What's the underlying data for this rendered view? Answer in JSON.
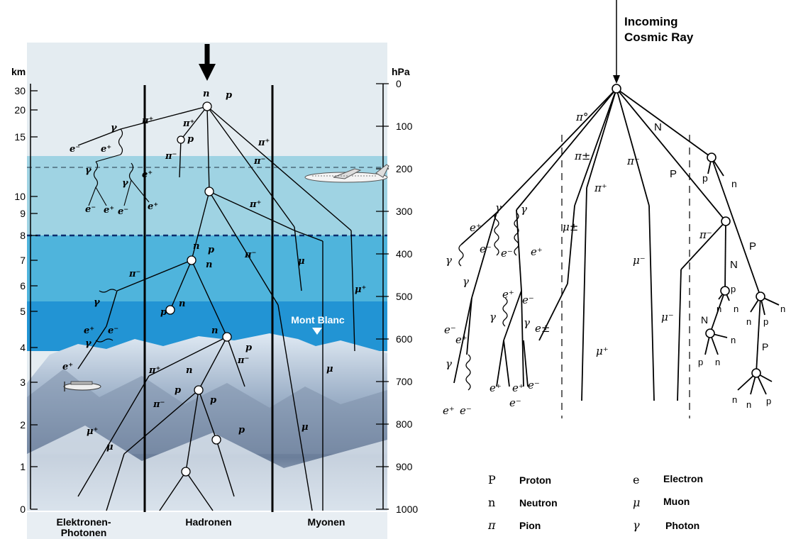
{
  "left_panel": {
    "axis_left_unit": "km",
    "axis_right_unit": "hPa",
    "km_ticks": [
      "30",
      "20",
      "15",
      "10",
      "9",
      "8",
      "7",
      "6",
      "5",
      "4",
      "3",
      "2",
      "1",
      "0"
    ],
    "hpa_ticks": [
      "0",
      "100",
      "200",
      "300",
      "400",
      "500",
      "600",
      "700",
      "800",
      "900",
      "1000"
    ],
    "columns": [
      "Elektronen-",
      "Photonen",
      "Hadronen",
      "Myonen"
    ],
    "mountain_label": "Mont Blanc",
    "particles": {
      "pi0": "π°",
      "pi_plus": "π⁺",
      "pi_minus": "π⁻",
      "mu": "μ",
      "mu_plus": "μ⁺",
      "gamma": "γ",
      "e_plus": "e⁺",
      "e_minus": "e⁻",
      "n": "n",
      "p": "p"
    }
  },
  "right_panel": {
    "title_line1": "Incoming",
    "title_line2": "Cosmic Ray",
    "labels": {
      "pi0": "π°",
      "pi_pm": "π±",
      "pi_minus": "π⁻",
      "pi_plus": "π⁺",
      "N": "N",
      "P": "P",
      "p": "p",
      "n": "n",
      "mu_pm": "μ±",
      "mu_minus": "μ⁻",
      "mu_plus": "μ⁺",
      "e_plus": "e⁺",
      "e_minus": "e⁻",
      "e_pm": "e±",
      "gamma": "γ"
    }
  },
  "legend": [
    {
      "symbol": "P",
      "name": "Proton"
    },
    {
      "symbol": "n",
      "name": "Neutron"
    },
    {
      "symbol": "π",
      "name": "Pion"
    },
    {
      "symbol": "e",
      "name": "Electron"
    },
    {
      "symbol": "μ",
      "name": "Muon"
    },
    {
      "symbol": "γ",
      "name": "Photon"
    }
  ],
  "colors": {
    "sky_top": "#e4ecf1",
    "band_1": "#9fd3e3",
    "band_2": "#55b8dc",
    "band_3": "#2a97d6",
    "band_4": "#1b86cf",
    "snow": "#eef3f8",
    "mountain": "#5a6f8f"
  }
}
